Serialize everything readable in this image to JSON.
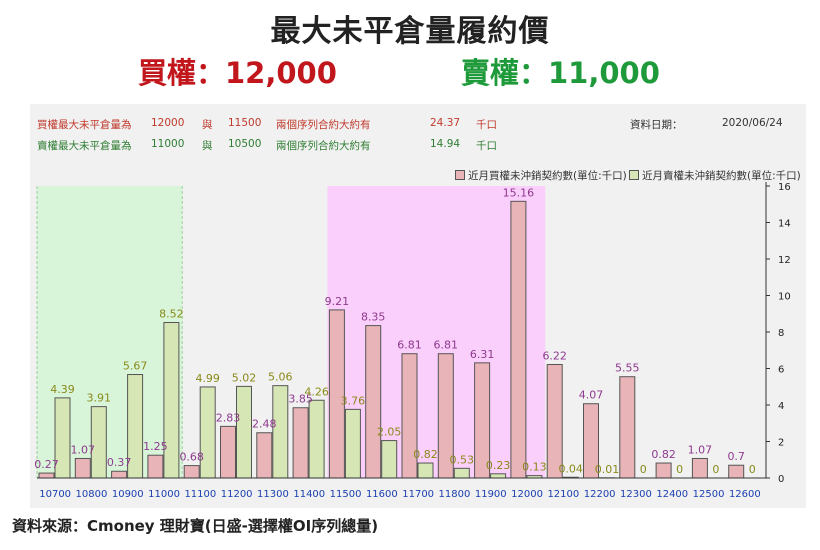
{
  "title": "最大未平倉量履約價",
  "call_max_label": "買權：12,000",
  "put_max_label": "賣權：11,000",
  "info": {
    "call_line": {
      "prefix": "買權最大未平倉量為",
      "strike1": "12000",
      "conj": "與",
      "strike2": "11500",
      "desc": "兩個序列合約大約有",
      "amount": "24.37",
      "unit": "千口"
    },
    "put_line": {
      "prefix": "賣權最大未平倉量為",
      "strike1": "11000",
      "conj": "與",
      "strike2": "10500",
      "desc": "兩個序列合約大約有",
      "amount": "14.94",
      "unit": "千口"
    },
    "date_label": "資料日期：",
    "date_value": "2020/06/24"
  },
  "source": "資料來源：Cmoney 理財寶(日盛-選擇權OI序列總量)",
  "colors": {
    "call_bar": "#e8b4b8",
    "put_bar": "#d6e6b4",
    "bar_stroke": "#555555",
    "call_label": "#8e3a8e",
    "put_label": "#8a8a1a",
    "green_zone": "#d9f5d9",
    "magenta_zone": "#fbcffb"
  },
  "chart_data": {
    "type": "bar",
    "categories": [
      "10700",
      "10800",
      "10900",
      "11000",
      "11100",
      "11200",
      "11300",
      "11400",
      "11500",
      "11600",
      "11700",
      "11800",
      "11900",
      "12000",
      "12100",
      "12200",
      "12300",
      "12400",
      "12500",
      "12600"
    ],
    "series": [
      {
        "name": "近月買權未沖銷契約數(單位:千口)",
        "values": [
          0.27,
          1.07,
          0.37,
          1.25,
          0.68,
          2.83,
          2.48,
          3.85,
          9.21,
          8.35,
          6.81,
          6.81,
          6.31,
          15.16,
          6.22,
          4.07,
          5.55,
          0.82,
          1.07,
          0.7
        ]
      },
      {
        "name": "近月賣權未沖銷契約數(單位:千口)",
        "values": [
          4.39,
          3.91,
          5.67,
          8.52,
          4.99,
          5.02,
          5.06,
          4.26,
          3.76,
          2.05,
          0.82,
          0.53,
          0.23,
          0.13,
          0.04,
          0.01,
          0,
          0,
          0,
          0
        ]
      }
    ],
    "ylim": [
      0,
      16
    ],
    "yticks": [
      0,
      2,
      4,
      6,
      8,
      10,
      12,
      14,
      16
    ],
    "y_axis_position": "right",
    "legend_position": "top-right",
    "highlight_ranges": [
      {
        "from": "10700",
        "to": "11000",
        "color": "green"
      },
      {
        "from": "11500",
        "to": "12000",
        "color": "magenta"
      }
    ]
  }
}
